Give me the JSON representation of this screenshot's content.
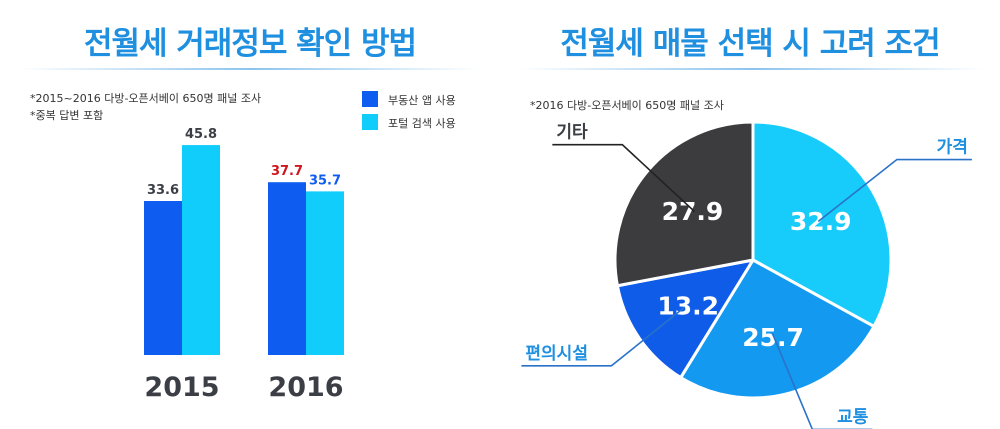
{
  "colors": {
    "title": "#1f8fe0",
    "dark_blue": "#0f5cf0",
    "cyan": "#10cdfb",
    "pie_cyan": "#17ccfb",
    "pie_mid_blue": "#1499f0",
    "pie_dark_blue": "#0f5ce8",
    "pie_dark_gray": "#3c3c3e",
    "value_red": "#d0161d",
    "label_dark": "#3b3f45",
    "callout_line": "#2a72c8"
  },
  "left": {
    "title": "전월세 거래정보 확인 방법",
    "notes": [
      "*2015~2016 다방-오픈서베이 650명 패널 조사",
      "*중복 답변 포함"
    ],
    "legend": [
      {
        "label": "부동산 앱 사용",
        "color": "#0f5cf0"
      },
      {
        "label": "포털 검색 사용",
        "color": "#10cdfb"
      }
    ]
  },
  "right": {
    "title": "전월세 매물 선택 시 고려 조건",
    "note": "*2016 다방-오픈서베이 650명 패널 조사"
  },
  "chart_data": [
    {
      "type": "bar",
      "title": "전월세 거래정보 확인 방법",
      "categories": [
        "2015",
        "2016"
      ],
      "series": [
        {
          "name": "부동산 앱 사용",
          "values": [
            33.6,
            37.7
          ],
          "color": "#0f5cf0"
        },
        {
          "name": "포털 검색 사용",
          "values": [
            45.8,
            35.7
          ],
          "color": "#10cdfb"
        }
      ],
      "value_label_colors": [
        [
          "#3b3f45",
          "#3b3f45"
        ],
        [
          "#d0161d",
          "#0f5cf0"
        ]
      ],
      "ylim": [
        0,
        60
      ],
      "grid": false,
      "legend_placement": "top-right"
    },
    {
      "type": "pie",
      "title": "전월세 매물 선택 시 고려 조건",
      "slices": [
        {
          "label": "가격",
          "value": 32.9,
          "color": "#17ccfb"
        },
        {
          "label": "교통",
          "value": 25.7,
          "color": "#1499f0"
        },
        {
          "label": "편의시설",
          "value": 13.2,
          "color": "#0f5ce8"
        },
        {
          "label": "기타",
          "value": 27.9,
          "color": "#3c3c3e"
        }
      ],
      "start": "12 o'clock, clockwise"
    }
  ]
}
